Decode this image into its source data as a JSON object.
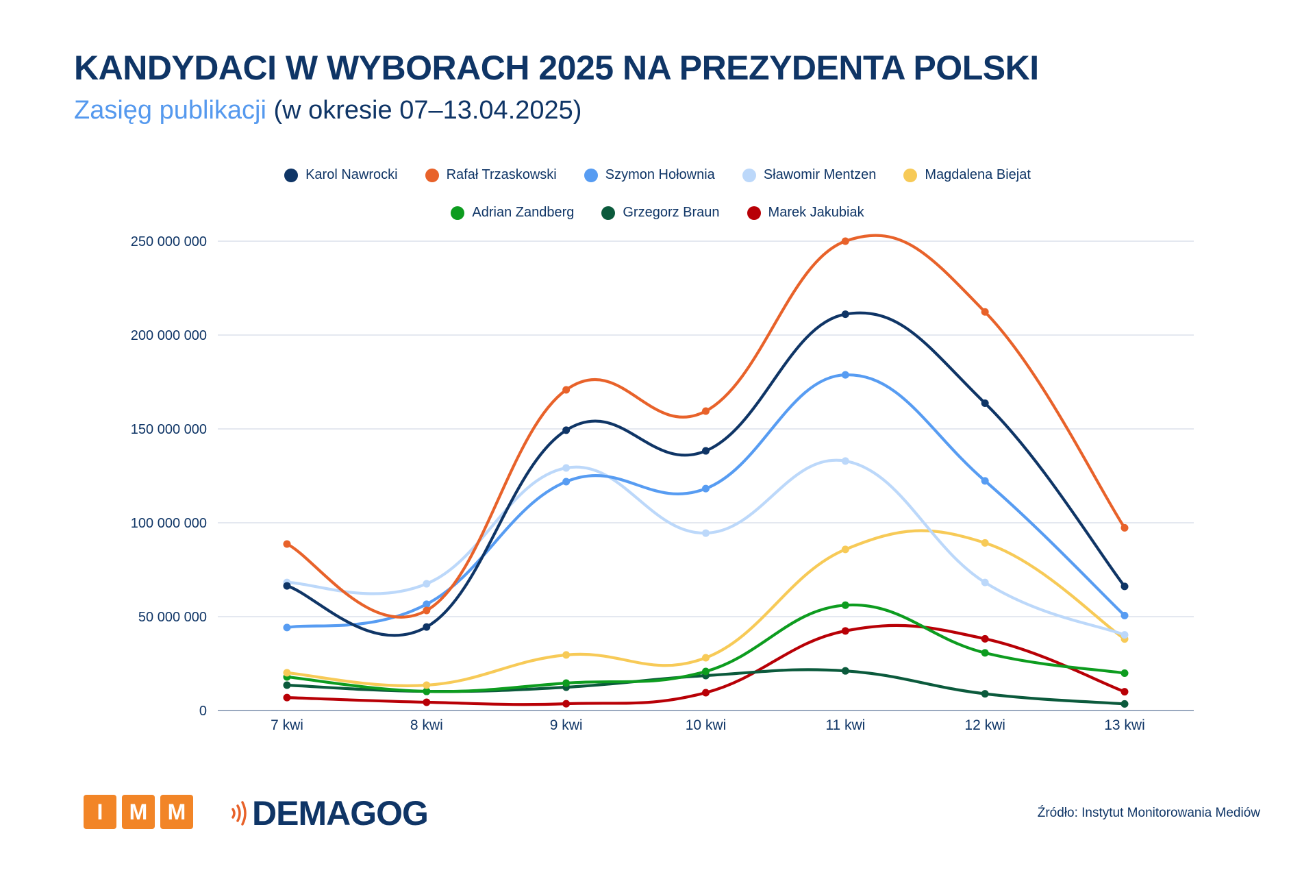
{
  "header": {
    "title": "KANDYDACI W WYBORACH 2025 NA PREZYDENTA POLSKI",
    "subtitle_accent": "Zasięg publikacji",
    "subtitle_rest": "(w okresie 07–13.04.2025)"
  },
  "footer": {
    "imm_letters": [
      "I",
      "M",
      "M"
    ],
    "demagog_label": "DEMAGOG",
    "source": "Źródło: Instytut Monitorowania Mediów",
    "colors": {
      "imm": "#f28527",
      "demagog_waves": "#e8622a"
    }
  },
  "chart_data": {
    "type": "line",
    "title": "KANDYDACI W WYBORACH 2025 NA PREZYDENTA POLSKI",
    "subtitle": "Zasięg publikacji (w okresie 07–13.04.2025)",
    "xlabel": "",
    "ylabel": "",
    "categories": [
      "7 kwi",
      "8 kwi",
      "9 kwi",
      "10 kwi",
      "11 kwi",
      "12 kwi",
      "13 kwi"
    ],
    "ylim": [
      0,
      250000000
    ],
    "yticks": [
      0,
      50000000,
      100000000,
      150000000,
      200000000,
      250000000
    ],
    "ytick_labels": [
      "0",
      "50 000 000",
      "100 000 000",
      "150 000 000",
      "200 000 000",
      "250 000 000"
    ],
    "grid": true,
    "smooth": true,
    "legend_position": "top-center",
    "series": [
      {
        "name": "Karol Nawrocki",
        "color": "#0f3566",
        "values": [
          66400000,
          44500000,
          149300000,
          138300000,
          211100000,
          163700000,
          66100000
        ]
      },
      {
        "name": "Rafał Trzaskowski",
        "color": "#e8622a",
        "values": [
          88700000,
          53300000,
          170800000,
          159500000,
          250000000,
          212300000,
          97300000
        ]
      },
      {
        "name": "Szymon Hołownia",
        "color": "#579cf2",
        "values": [
          44200000,
          56600000,
          121900000,
          118200000,
          178800000,
          122300000,
          50600000
        ]
      },
      {
        "name": "Sławomir Mentzen",
        "color": "#bcd8fa",
        "values": [
          68200000,
          67500000,
          129200000,
          94500000,
          132900000,
          68200000,
          40300000
        ]
      },
      {
        "name": "Magdalena Biejat",
        "color": "#f7ca57",
        "values": [
          20100000,
          13500000,
          29600000,
          28100000,
          85800000,
          89300000,
          38100000
        ]
      },
      {
        "name": "Adrian Zandberg",
        "color": "#0d9c1f",
        "values": [
          17900000,
          10200000,
          14600000,
          20800000,
          56100000,
          30700000,
          19900000
        ]
      },
      {
        "name": "Grzegorz Braun",
        "color": "#0b5a3c",
        "values": [
          13500000,
          10200000,
          12400000,
          18600000,
          21100000,
          8900000,
          3500000
        ]
      },
      {
        "name": "Marek Jakubiak",
        "color": "#b80006",
        "values": [
          6900000,
          4400000,
          3600000,
          9500000,
          42400000,
          38200000,
          10000000
        ]
      }
    ],
    "legend_rows": [
      [
        0,
        1,
        2,
        3,
        4
      ],
      [
        5,
        6,
        7
      ]
    ]
  }
}
